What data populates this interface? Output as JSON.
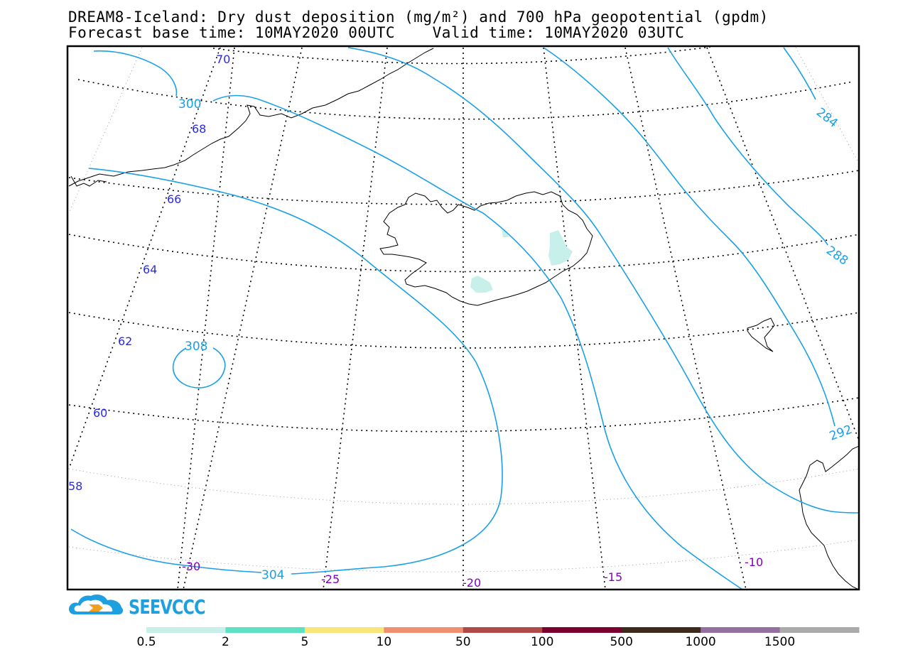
{
  "title": {
    "line1": "DREAM8-Iceland: Dry dust deposition (mg/m²) and 700 hPa geopotential (gpdm)",
    "line2": "Forecast base time: 10MAY2020 00UTC    Valid time: 10MAY2020 03UTC"
  },
  "lat_labels": [
    "70",
    "68",
    "66",
    "64",
    "62",
    "60",
    "58"
  ],
  "lon_labels": [
    "-30",
    "-25",
    "-20",
    "-15",
    "-10"
  ],
  "contour_labels": [
    "300",
    "308",
    "304",
    "284",
    "288",
    "292"
  ],
  "logo": {
    "text": "SEEVCCC",
    "icon": "cloud-arrow-icon"
  },
  "legend": {
    "colors": [
      "#c8f0ea",
      "#5ee0c2",
      "#f8e67a",
      "#ee9070",
      "#b04a48",
      "#7a0030",
      "#3c2a1c",
      "#9470a0",
      "#aaaaaa"
    ],
    "tick_labels": [
      "0.5",
      "2",
      "5",
      "10",
      "50",
      "100",
      "500",
      "1000",
      "1500"
    ]
  },
  "colors": {
    "contour": "#1aa0e8",
    "lat_label": "#2a2ae8",
    "lon_label": "#8000c0",
    "dust": "#c8f0ea"
  }
}
